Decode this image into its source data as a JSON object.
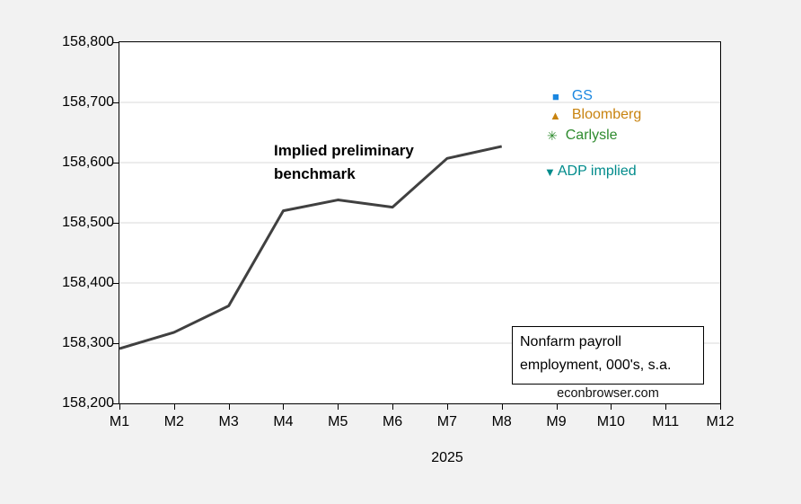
{
  "colors": {
    "page_background": "#f2f2f2",
    "plot_background": "#ffffff",
    "axis": "#000000",
    "gridline": "#d9d9d9",
    "line": "#404040"
  },
  "annotations": {
    "series_label": "Implied preliminary\nbenchmark",
    "note_box": "Nonfarm payroll\nemployment, 000's, s.a.",
    "watermark": "econbrowser.com",
    "x_axis_title": "2025"
  },
  "legend": {
    "items": [
      {
        "name": "gs",
        "label": "GS",
        "color": "#1b87e0",
        "marker": "square-icon",
        "glyph": "■"
      },
      {
        "name": "bloomberg",
        "label": "Bloomberg",
        "color": "#c8830f",
        "marker": "triangle-up-icon",
        "glyph": "▲"
      },
      {
        "name": "carlysle",
        "label": "Carlysle",
        "color": "#2e8b2e",
        "marker": "asterisk-icon",
        "glyph": "✳"
      },
      {
        "name": "adp-implied",
        "label": "ADP implied",
        "color": "#008b8b",
        "marker": "triangle-down-icon",
        "glyph": "▼"
      }
    ]
  },
  "chart_data": {
    "type": "line",
    "title": "Implied preliminary benchmark",
    "categories": [
      "M1",
      "M2",
      "M3",
      "M4",
      "M5",
      "M6",
      "M7",
      "M8",
      "M9",
      "M10",
      "M11",
      "M12"
    ],
    "series": [
      {
        "name": "Implied preliminary benchmark",
        "color": "#404040",
        "values": [
          158291,
          158318,
          158362,
          158520,
          158538,
          158526,
          158607,
          158627
        ]
      }
    ],
    "point_annotations": [
      {
        "label": "GS",
        "x": "M9",
        "value": 158710,
        "color": "#1b87e0"
      },
      {
        "label": "Bloomberg",
        "x": "M9",
        "value": 158680,
        "color": "#c8830f"
      },
      {
        "label": "Carlysle",
        "x": "M9",
        "value": 158645,
        "color": "#2e8b2e"
      },
      {
        "label": "ADP implied",
        "x": "M9",
        "value": 158585,
        "color": "#008b8b"
      }
    ],
    "xlabel": "2025",
    "ylabel": "",
    "ylim": [
      158200,
      158800
    ],
    "ytick_step": 100,
    "y_tick_labels_top_to_bottom": [
      "158,800",
      "158,700",
      "158,600",
      "158,500",
      "158,400",
      "158,300",
      "158,200"
    ],
    "grid": "horizontal",
    "gridline_color": "#d9d9d9",
    "note": "Nonfarm payroll employment, 000's, s.a.",
    "watermark": "econbrowser.com",
    "legend_position": "inside-top-right"
  }
}
